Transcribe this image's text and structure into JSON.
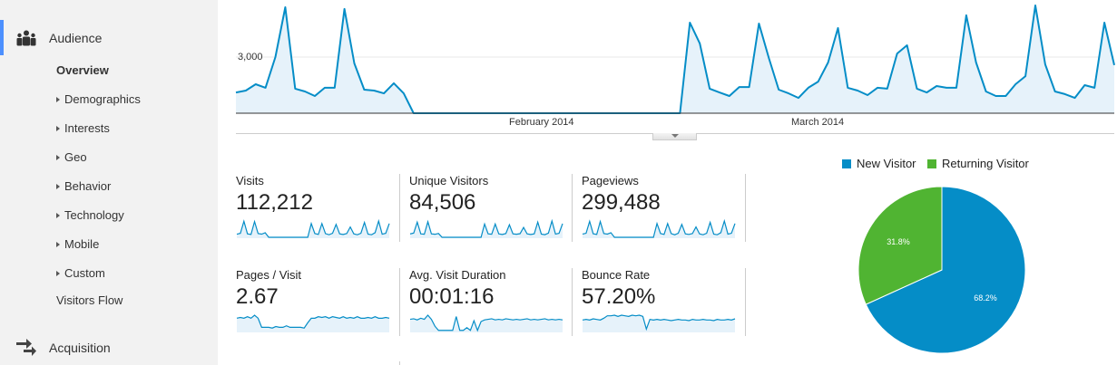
{
  "sidebar": {
    "audience": {
      "label": "Audience",
      "icon": "people-icon"
    },
    "items": [
      {
        "label": "Overview",
        "expandable": false,
        "active": true
      },
      {
        "label": "Demographics",
        "expandable": true
      },
      {
        "label": "Interests",
        "expandable": true
      },
      {
        "label": "Geo",
        "expandable": true
      },
      {
        "label": "Behavior",
        "expandable": true
      },
      {
        "label": "Technology",
        "expandable": true
      },
      {
        "label": "Mobile",
        "expandable": true
      },
      {
        "label": "Custom",
        "expandable": true
      },
      {
        "label": "Visitors Flow",
        "expandable": false
      }
    ],
    "acquisition": {
      "label": "Acquisition",
      "icon": "arrows-icon"
    }
  },
  "chart_data": [
    {
      "type": "area",
      "ylabel_tick": "3,000",
      "yticks": [
        3000
      ],
      "x_tick_labels": [
        "February 2014",
        "March 2014"
      ],
      "ylim": [
        0,
        6050
      ],
      "grid": true,
      "color": "#058dc7",
      "values": [
        1110,
        1210,
        1550,
        1360,
        3000,
        5660,
        1310,
        1160,
        920,
        1360,
        1360,
        5570,
        2660,
        1260,
        1210,
        1060,
        1600,
        1060,
        0,
        0,
        0,
        0,
        0,
        0,
        0,
        0,
        0,
        0,
        0,
        0,
        0,
        0,
        0,
        0,
        0,
        0,
        0,
        0,
        0,
        0,
        0,
        0,
        0,
        0,
        0,
        0,
        4840,
        3730,
        1310,
        1110,
        920,
        1400,
        1400,
        4790,
        2950,
        1260,
        1060,
        820,
        1360,
        1690,
        2710,
        4550,
        1360,
        1210,
        970,
        1360,
        1310,
        3190,
        3630,
        1310,
        1110,
        1450,
        1360,
        1360,
        5230,
        2710,
        1160,
        920,
        920,
        1550,
        1980,
        5760,
        2610,
        1160,
        1020,
        820,
        1500,
        1360,
        4840,
        2570
      ]
    },
    {
      "type": "pie",
      "legend_position": "top",
      "slices": [
        {
          "name": "New Visitor",
          "value": 68.2,
          "label": "68.2%",
          "color": "#058dc7"
        },
        {
          "name": "Returning Visitor",
          "value": 31.8,
          "label": "31.8%",
          "color": "#50b432"
        }
      ]
    }
  ],
  "metrics": [
    {
      "label": "Visits",
      "value": "112,212",
      "sparkline": [
        1100,
        1400,
        5600,
        1200,
        1000,
        5500,
        1300,
        1100,
        1600,
        0,
        0,
        0,
        0,
        0,
        0,
        0,
        0,
        0,
        0,
        0,
        0,
        4800,
        1300,
        1000,
        4800,
        1300,
        900,
        1400,
        4500,
        1200,
        1000,
        1300,
        3600,
        1200,
        900,
        1400,
        5200,
        1100,
        900,
        1600,
        5700,
        1100,
        1400,
        4800
      ]
    },
    {
      "label": "Unique Visitors",
      "value": "84,506",
      "sparkline": [
        900,
        1100,
        4000,
        900,
        800,
        4100,
        900,
        800,
        1000,
        0,
        0,
        0,
        0,
        0,
        0,
        0,
        0,
        0,
        0,
        0,
        0,
        3500,
        900,
        800,
        3500,
        900,
        750,
        1000,
        3300,
        900,
        800,
        950,
        2600,
        900,
        750,
        900,
        4000,
        850,
        700,
        1100,
        4300,
        850,
        1050,
        3600
      ]
    },
    {
      "label": "Pageviews",
      "value": "299,488",
      "sparkline": [
        3000,
        3800,
        15000,
        3300,
        2700,
        14800,
        3500,
        3000,
        4300,
        0,
        0,
        0,
        0,
        0,
        0,
        0,
        0,
        0,
        0,
        0,
        0,
        12900,
        3500,
        2700,
        12900,
        3500,
        2400,
        3800,
        12100,
        3200,
        2700,
        3500,
        9700,
        3200,
        2400,
        3800,
        14000,
        3000,
        2400,
        4300,
        15300,
        3000,
        3800,
        12900
      ]
    },
    {
      "label": "Pages / Visit",
      "value": "2.67",
      "sparkline": [
        2.9,
        2.95,
        2.9,
        3.0,
        2.9,
        3.1,
        2.9,
        2.3,
        2.3,
        2.3,
        2.25,
        2.35,
        2.3,
        2.3,
        2.4,
        2.3,
        2.3,
        2.3,
        2.3,
        2.25,
        2.6,
        2.9,
        2.9,
        3.0,
        2.95,
        3.0,
        2.9,
        3.0,
        2.95,
        2.9,
        3.0,
        2.9,
        2.95,
        2.9,
        3.0,
        2.9,
        2.9,
        2.95,
        2.9,
        3.0,
        2.9,
        2.9,
        2.95,
        2.9
      ]
    },
    {
      "label": "Avg. Visit Duration",
      "value": "00:01:16",
      "sparkline": [
        80,
        82,
        78,
        84,
        80,
        95,
        80,
        55,
        40,
        40,
        40,
        40,
        40,
        90,
        40,
        40,
        50,
        40,
        75,
        40,
        72,
        78,
        80,
        82,
        78,
        80,
        78,
        82,
        80,
        78,
        80,
        78,
        80,
        82,
        78,
        80,
        78,
        80,
        82,
        78,
        80,
        78,
        80,
        78
      ]
    },
    {
      "label": "Bounce Rate",
      "value": "57.20%",
      "sparkline": [
        55,
        56,
        55,
        57,
        56,
        55,
        58,
        62,
        62,
        63,
        61,
        63,
        62,
        61,
        63,
        62,
        63,
        61,
        40,
        56,
        55,
        56,
        55,
        56,
        55,
        54,
        55,
        56,
        55,
        55,
        54,
        56,
        55,
        55,
        56,
        55,
        55,
        54,
        56,
        55,
        55,
        56,
        55,
        57
      ]
    }
  ]
}
